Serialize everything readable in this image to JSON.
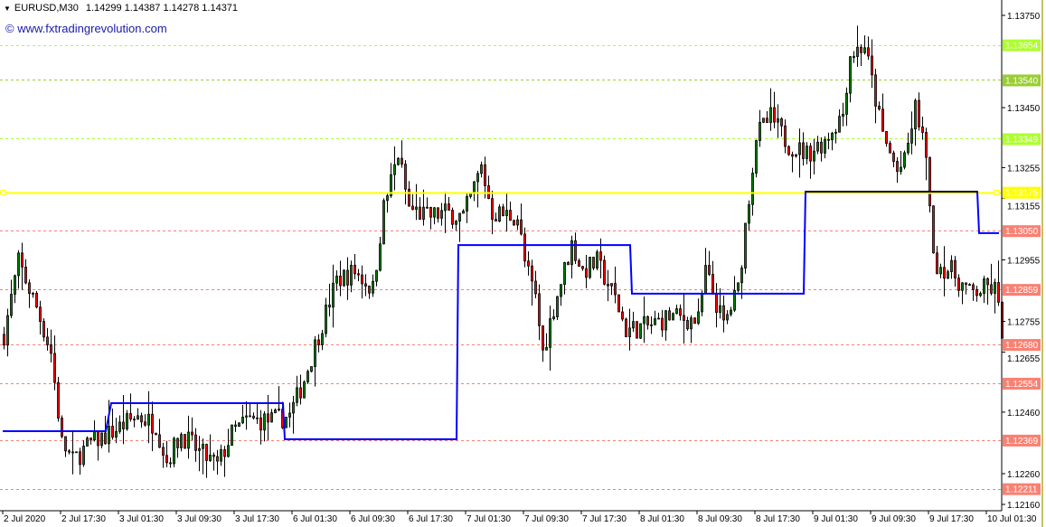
{
  "header": {
    "symbol": "EURUSD,M30",
    "ohlc": "1.14299 1.14387 1.14278 1.14371",
    "watermark": "© www.fxtradingrevolution.com"
  },
  "chart_data": {
    "type": "candlestick",
    "timeframe": "M30",
    "ylim": [
      1.1213,
      1.1381
    ],
    "grid": false,
    "colors": {
      "bull": "#008000",
      "bear": "#ff0000",
      "wick": "#000000",
      "background": "#ffffff"
    },
    "y_tick_labels": [
      "1.13750",
      "1.13450",
      "1.13255",
      "1.13155",
      "1.12955",
      "1.12755",
      "1.12655",
      "1.12460",
      "1.12260",
      "1.12160"
    ],
    "x_tick_labels": [
      "2 Jul 2020",
      "2 Jul 17:30",
      "3 Jul 01:30",
      "3 Jul 09:30",
      "3 Jul 17:30",
      "6 Jul 01:30",
      "6 Jul 09:30",
      "6 Jul 17:30",
      "7 Jul 01:30",
      "7 Jul 09:30",
      "7 Jul 17:30",
      "8 Jul 01:30",
      "8 Jul 09:30",
      "8 Jul 17:30",
      "9 Jul 01:30",
      "9 Jul 09:30",
      "9 Jul 17:30",
      "10 Jul 01:30"
    ],
    "bars_per_x_tick": 16,
    "bar_count": 277,
    "approx_close_path": [
      [
        0,
        1.12713
      ],
      [
        4,
        1.12948
      ],
      [
        9,
        1.12801
      ],
      [
        13,
        1.12654
      ],
      [
        16,
        1.1236
      ],
      [
        19,
        1.12301
      ],
      [
        24,
        1.1236
      ],
      [
        29,
        1.12389
      ],
      [
        37,
        1.12448
      ],
      [
        42,
        1.12419
      ],
      [
        45,
        1.12301
      ],
      [
        49,
        1.12389
      ],
      [
        54,
        1.1233
      ],
      [
        59,
        1.12286
      ],
      [
        63,
        1.12389
      ],
      [
        67,
        1.12433
      ],
      [
        74,
        1.12433
      ],
      [
        79,
        1.12448
      ],
      [
        83,
        1.12566
      ],
      [
        87,
        1.12713
      ],
      [
        92,
        1.12889
      ],
      [
        97,
        1.12918
      ],
      [
        102,
        1.12859
      ],
      [
        105,
        1.13124
      ],
      [
        109,
        1.133
      ],
      [
        112,
        1.13124
      ],
      [
        117,
        1.13095
      ],
      [
        122,
        1.13109
      ],
      [
        127,
        1.13095
      ],
      [
        132,
        1.13256
      ],
      [
        135,
        1.13109
      ],
      [
        142,
        1.13095
      ],
      [
        144,
        1.12948
      ],
      [
        147,
        1.1283
      ],
      [
        149,
        1.12654
      ],
      [
        152,
        1.12801
      ],
      [
        157,
        1.13006
      ],
      [
        160,
        1.12918
      ],
      [
        164,
        1.12948
      ],
      [
        169,
        1.1283
      ],
      [
        172,
        1.12727
      ],
      [
        179,
        1.12742
      ],
      [
        184,
        1.12771
      ],
      [
        192,
        1.12757
      ],
      [
        194,
        1.12918
      ],
      [
        199,
        1.12742
      ],
      [
        203,
        1.12859
      ],
      [
        205,
        1.13065
      ],
      [
        208,
        1.13359
      ],
      [
        212,
        1.13418
      ],
      [
        217,
        1.1333
      ],
      [
        222,
        1.133
      ],
      [
        227,
        1.13344
      ],
      [
        232,
        1.13433
      ],
      [
        234,
        1.13624
      ],
      [
        238,
        1.13653
      ],
      [
        240,
        1.13535
      ],
      [
        243,
        1.13359
      ],
      [
        247,
        1.13242
      ],
      [
        249,
        1.13271
      ],
      [
        252,
        1.13447
      ],
      [
        254,
        1.13359
      ],
      [
        256,
        1.13153
      ],
      [
        257,
        1.12948
      ],
      [
        262,
        1.12918
      ],
      [
        267,
        1.12845
      ],
      [
        272,
        1.12865
      ],
      [
        274,
        1.12859
      ],
      [
        276,
        1.12727
      ]
    ],
    "levels": [
      {
        "price": 1.13654,
        "label": "1.13654",
        "color": "#adff2f",
        "text_color": "#ffffff"
      },
      {
        "price": 1.1354,
        "label": "1.13540",
        "color": "#9acd32",
        "text_color": "#ffffff"
      },
      {
        "price": 1.13349,
        "label": "1.13349",
        "color": "#adff2f",
        "text_color": "#ffffff"
      },
      {
        "price": 1.1305,
        "label": "1.13050",
        "color": "#fa8072",
        "text_color": "#ffffff"
      },
      {
        "price": 1.12859,
        "label": "1.12859",
        "color": "#fa8072",
        "text_color": "#ffffff"
      },
      {
        "price": 1.1268,
        "label": "1.12680",
        "color": "#fa8072",
        "text_color": "#ffffff"
      },
      {
        "price": 1.12554,
        "label": "1.12554",
        "color": "#fa8072",
        "text_color": "#ffffff"
      },
      {
        "price": 1.12369,
        "label": "1.12369",
        "color": "#fa8072",
        "text_color": "#ffffff"
      },
      {
        "price": 1.12211,
        "label": "1.12211",
        "color": "#fa8072",
        "text_color": "#ffffff"
      }
    ],
    "horizontal_line": {
      "price": 1.13175,
      "label": "1.13175",
      "color": "#ffff00"
    },
    "step_line": {
      "color": "#0000ff",
      "segments": [
        [
          0,
          28,
          1.12398
        ],
        [
          30,
          77,
          1.12489
        ],
        [
          78,
          125,
          1.12372
        ],
        [
          126,
          173,
          1.13003
        ],
        [
          174,
          221,
          1.12845
        ],
        [
          222,
          269,
          1.13177
        ],
        [
          270,
          275,
          1.13042
        ]
      ]
    },
    "black_segment": {
      "from_bar": 222,
      "to_bar": 269,
      "price": 1.13177,
      "color": "#000000"
    }
  }
}
